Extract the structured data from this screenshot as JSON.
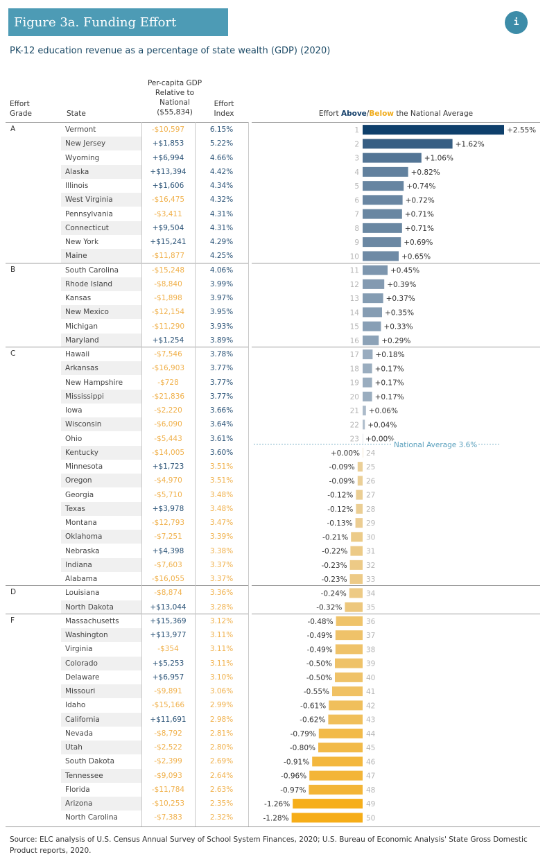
{
  "title": "Figure 3a. Funding Effort",
  "info_button": "i",
  "subtitle": "PK-12 education revenue as a percentage of state wealth (GDP) (2020)",
  "headers": {
    "effort_grade_1": "Effort",
    "effort_grade_2": "Grade",
    "state": "State",
    "gdp_1": "Per-capita GDP",
    "gdp_2": "Relative to",
    "gdp_3": "National",
    "gdp_4": "($55,834)",
    "index_1": "Effort",
    "index_2": "Index",
    "chart_prefix": "Effort ",
    "chart_above": "Above",
    "chart_slash": "/",
    "chart_below": "Below",
    "chart_suffix": " the National Average"
  },
  "colors": {
    "strong_positive": "#0e3f6b",
    "light_positive": "#c3ccd6",
    "light_negative": "#ead2a4",
    "strong_negative": "#f6ad18",
    "positive_text": "#2b5377",
    "negative_text": "#f0b04a"
  },
  "groups": [
    {
      "grade": "A",
      "rows": [
        {
          "state": "Vermont",
          "gdp": "-$10,597",
          "index": "6.15%"
        },
        {
          "state": "New Jersey",
          "gdp": "+$1,853",
          "index": "5.22%"
        },
        {
          "state": "Wyoming",
          "gdp": "+$6,994",
          "index": "4.66%"
        },
        {
          "state": "Alaska",
          "gdp": "+$13,394",
          "index": "4.42%"
        },
        {
          "state": "Illinois",
          "gdp": "+$1,606",
          "index": "4.34%"
        },
        {
          "state": "West Virginia",
          "gdp": "-$16,475",
          "index": "4.32%"
        },
        {
          "state": "Pennsylvania",
          "gdp": "-$3,411",
          "index": "4.31%"
        },
        {
          "state": "Connecticut",
          "gdp": "+$9,504",
          "index": "4.31%"
        },
        {
          "state": "New York",
          "gdp": "+$15,241",
          "index": "4.29%"
        },
        {
          "state": "Maine",
          "gdp": "-$11,877",
          "index": "4.25%"
        }
      ]
    },
    {
      "grade": "B",
      "rows": [
        {
          "state": "South Carolina",
          "gdp": "-$15,248",
          "index": "4.06%"
        },
        {
          "state": "Rhode Island",
          "gdp": "-$8,840",
          "index": "3.99%"
        },
        {
          "state": "Kansas",
          "gdp": "-$1,898",
          "index": "3.97%"
        },
        {
          "state": "New Mexico",
          "gdp": "-$12,154",
          "index": "3.95%"
        },
        {
          "state": "Michigan",
          "gdp": "-$11,290",
          "index": "3.93%"
        },
        {
          "state": "Maryland",
          "gdp": "+$1,254",
          "index": "3.89%"
        }
      ]
    },
    {
      "grade": "C",
      "rows": [
        {
          "state": "Hawaii",
          "gdp": "-$7,546",
          "index": "3.78%"
        },
        {
          "state": "Arkansas",
          "gdp": "-$16,903",
          "index": "3.77%"
        },
        {
          "state": "New Hampshire",
          "gdp": "-$728",
          "index": "3.77%"
        },
        {
          "state": "Mississippi",
          "gdp": "-$21,836",
          "index": "3.77%"
        },
        {
          "state": "Iowa",
          "gdp": "-$2,220",
          "index": "3.66%"
        },
        {
          "state": "Wisconsin",
          "gdp": "-$6,090",
          "index": "3.64%"
        },
        {
          "state": "Ohio",
          "gdp": "-$5,443",
          "index": "3.61%"
        },
        {
          "state": "Kentucky",
          "gdp": "-$14,005",
          "index": "3.60%"
        },
        {
          "state": "Minnesota",
          "gdp": "+$1,723",
          "index": "3.51%"
        },
        {
          "state": "Oregon",
          "gdp": "-$4,970",
          "index": "3.51%"
        },
        {
          "state": "Georgia",
          "gdp": "-$5,710",
          "index": "3.48%"
        },
        {
          "state": "Texas",
          "gdp": "+$3,978",
          "index": "3.48%"
        },
        {
          "state": "Montana",
          "gdp": "-$12,793",
          "index": "3.47%"
        },
        {
          "state": "Oklahoma",
          "gdp": "-$7,251",
          "index": "3.39%"
        },
        {
          "state": "Nebraska",
          "gdp": "+$4,398",
          "index": "3.38%"
        },
        {
          "state": "Indiana",
          "gdp": "-$7,603",
          "index": "3.37%"
        },
        {
          "state": "Alabama",
          "gdp": "-$16,055",
          "index": "3.37%"
        }
      ]
    },
    {
      "grade": "D",
      "rows": [
        {
          "state": "Louisiana",
          "gdp": "-$8,874",
          "index": "3.36%"
        },
        {
          "state": "North Dakota",
          "gdp": "+$13,044",
          "index": "3.28%"
        }
      ]
    },
    {
      "grade": "F",
      "rows": [
        {
          "state": "Massachusetts",
          "gdp": "+$15,369",
          "index": "3.12%"
        },
        {
          "state": "Washington",
          "gdp": "+$13,977",
          "index": "3.11%"
        },
        {
          "state": "Virginia",
          "gdp": "-$354",
          "index": "3.11%"
        },
        {
          "state": "Colorado",
          "gdp": "+$5,253",
          "index": "3.11%"
        },
        {
          "state": "Delaware",
          "gdp": "+$6,957",
          "index": "3.10%"
        },
        {
          "state": "Missouri",
          "gdp": "-$9,891",
          "index": "3.06%"
        },
        {
          "state": "Idaho",
          "gdp": "-$15,166",
          "index": "2.99%"
        },
        {
          "state": "California",
          "gdp": "+$11,691",
          "index": "2.98%"
        },
        {
          "state": "Nevada",
          "gdp": "-$8,792",
          "index": "2.81%"
        },
        {
          "state": "Utah",
          "gdp": "-$2,522",
          "index": "2.80%"
        },
        {
          "state": "South Dakota",
          "gdp": "-$2,399",
          "index": "2.69%"
        },
        {
          "state": "Tennessee",
          "gdp": "-$9,093",
          "index": "2.64%"
        },
        {
          "state": "Florida",
          "gdp": "-$11,784",
          "index": "2.63%"
        },
        {
          "state": "Arizona",
          "gdp": "-$10,253",
          "index": "2.35%"
        },
        {
          "state": "North Carolina",
          "gdp": "-$7,383",
          "index": "2.32%"
        }
      ]
    }
  ],
  "chart_data": {
    "type": "bar",
    "orientation": "horizontal",
    "categories": [
      "1",
      "2",
      "3",
      "4",
      "5",
      "6",
      "7",
      "8",
      "9",
      "10",
      "11",
      "12",
      "13",
      "14",
      "15",
      "16",
      "17",
      "18",
      "19",
      "20",
      "21",
      "22",
      "23",
      "24",
      "25",
      "26",
      "27",
      "28",
      "29",
      "30",
      "31",
      "32",
      "33",
      "34",
      "35",
      "36",
      "37",
      "38",
      "39",
      "40",
      "41",
      "42",
      "43",
      "44",
      "45",
      "46",
      "47",
      "48",
      "49",
      "50"
    ],
    "values": [
      2.55,
      1.62,
      1.06,
      0.82,
      0.74,
      0.72,
      0.71,
      0.71,
      0.69,
      0.65,
      0.45,
      0.39,
      0.37,
      0.35,
      0.33,
      0.29,
      0.18,
      0.17,
      0.17,
      0.17,
      0.06,
      0.04,
      0.0,
      0.0,
      -0.09,
      -0.09,
      -0.12,
      -0.12,
      -0.13,
      -0.21,
      -0.22,
      -0.23,
      -0.23,
      -0.24,
      -0.32,
      -0.48,
      -0.49,
      -0.49,
      -0.5,
      -0.5,
      -0.55,
      -0.61,
      -0.62,
      -0.79,
      -0.8,
      -0.91,
      -0.96,
      -0.97,
      -1.26,
      -1.28
    ],
    "value_labels": [
      "+2.55%",
      "+1.62%",
      "+1.06%",
      "+0.82%",
      "+0.74%",
      "+0.72%",
      "+0.71%",
      "+0.71%",
      "+0.69%",
      "+0.65%",
      "+0.45%",
      "+0.39%",
      "+0.37%",
      "+0.35%",
      "+0.33%",
      "+0.29%",
      "+0.18%",
      "+0.17%",
      "+0.17%",
      "+0.17%",
      "+0.06%",
      "+0.04%",
      "+0.00%",
      "+0.00%",
      "-0.09%",
      "-0.09%",
      "-0.12%",
      "-0.12%",
      "-0.13%",
      "-0.21%",
      "-0.22%",
      "-0.23%",
      "-0.23%",
      "-0.24%",
      "-0.32%",
      "-0.48%",
      "-0.49%",
      "-0.49%",
      "-0.50%",
      "-0.50%",
      "-0.55%",
      "-0.61%",
      "-0.62%",
      "-0.79%",
      "-0.80%",
      "-0.91%",
      "-0.96%",
      "-0.97%",
      "-1.26%",
      "-1.28%"
    ],
    "reference_line": {
      "label": "National Average 3.6%",
      "value": 0
    },
    "title": "Effort Above/Below the National Average",
    "xlim": [
      -1.28,
      2.55
    ],
    "grid": false
  },
  "source": "Source: ELC analysis of U.S. Census Annual Survey of School System Finances, 2020; U.S. Bureau of Economic Analysis' State Gross Domestic Product reports, 2020."
}
